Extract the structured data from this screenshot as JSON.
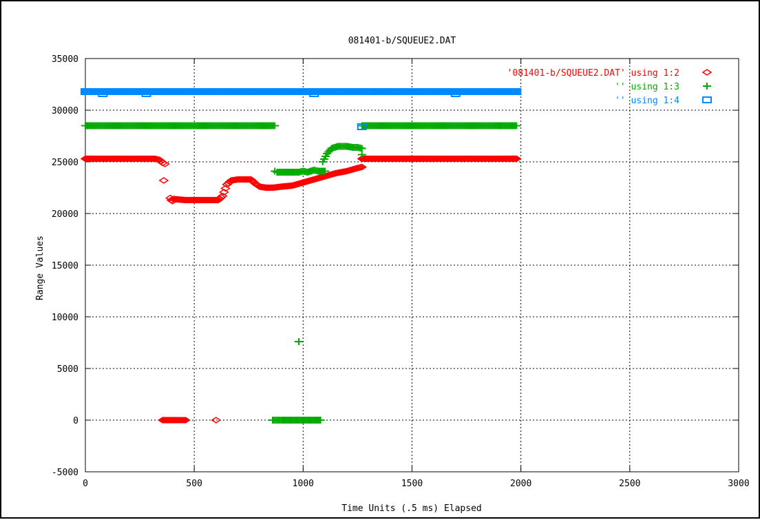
{
  "chart_data": {
    "type": "scatter",
    "title": "081401-b/SQUEUE2.DAT",
    "xlabel": "Time Units (.5 ms) Elapsed",
    "ylabel": "Range Values",
    "xlim": [
      0,
      3000
    ],
    "ylim": [
      -5000,
      35000
    ],
    "xticks": [
      0,
      500,
      1000,
      1500,
      2000,
      2500,
      3000
    ],
    "yticks": [
      -5000,
      0,
      5000,
      10000,
      15000,
      20000,
      25000,
      30000,
      35000
    ],
    "xtick_labels": [
      "0",
      "500",
      "1000",
      "1500",
      "2000",
      "2500",
      "3000"
    ],
    "ytick_labels": [
      "-5000",
      "0",
      "5000",
      "10000",
      "15000",
      "20000",
      "25000",
      "30000",
      "35000"
    ],
    "grid": true,
    "legend_position": "top-right",
    "series": [
      {
        "name": "'081401-b/SQUEUE2.DAT' using 1:2",
        "color": "#ff0000",
        "marker": "diamond",
        "points": [
          [
            0,
            25300
          ],
          [
            40,
            25300
          ],
          [
            80,
            25300
          ],
          [
            120,
            25300
          ],
          [
            160,
            25300
          ],
          [
            200,
            25300
          ],
          [
            240,
            25300
          ],
          [
            280,
            25300
          ],
          [
            320,
            25300
          ],
          [
            340,
            25200
          ],
          [
            355,
            24900
          ],
          [
            365,
            24800
          ],
          [
            355,
            0
          ],
          [
            380,
            0
          ],
          [
            400,
            0
          ],
          [
            420,
            0
          ],
          [
            440,
            0
          ],
          [
            460,
            0
          ],
          [
            360,
            23200
          ],
          [
            390,
            21500
          ],
          [
            395,
            21300
          ],
          [
            400,
            21200
          ],
          [
            405,
            21400
          ],
          [
            460,
            21300
          ],
          [
            490,
            21300
          ],
          [
            520,
            21300
          ],
          [
            550,
            21300
          ],
          [
            580,
            21300
          ],
          [
            610,
            21300
          ],
          [
            630,
            21700
          ],
          [
            650,
            22800
          ],
          [
            670,
            23200
          ],
          [
            700,
            23300
          ],
          [
            730,
            23300
          ],
          [
            760,
            23300
          ],
          [
            780,
            22900
          ],
          [
            800,
            22600
          ],
          [
            830,
            22500
          ],
          [
            860,
            22500
          ],
          [
            900,
            22600
          ],
          [
            950,
            22700
          ],
          [
            1000,
            23000
          ],
          [
            1050,
            23300
          ],
          [
            1100,
            23600
          ],
          [
            1150,
            23900
          ],
          [
            1200,
            24100
          ],
          [
            1250,
            24400
          ],
          [
            1270,
            24500
          ],
          [
            600,
            0
          ],
          [
            1270,
            25300
          ],
          [
            1300,
            25300
          ],
          [
            1400,
            25300
          ],
          [
            1500,
            25300
          ],
          [
            1600,
            25300
          ],
          [
            1700,
            25300
          ],
          [
            1800,
            25300
          ],
          [
            1900,
            25300
          ],
          [
            1980,
            25300
          ]
        ]
      },
      {
        "name": "'' using 1:3",
        "color": "#00aa00",
        "marker": "plus",
        "points": [
          [
            0,
            28500
          ],
          [
            50,
            28500
          ],
          [
            100,
            28500
          ],
          [
            150,
            28500
          ],
          [
            200,
            28500
          ],
          [
            250,
            28500
          ],
          [
            300,
            28500
          ],
          [
            350,
            28500
          ],
          [
            400,
            28500
          ],
          [
            450,
            28500
          ],
          [
            500,
            28500
          ],
          [
            550,
            28500
          ],
          [
            600,
            28500
          ],
          [
            650,
            28500
          ],
          [
            700,
            28500
          ],
          [
            750,
            28500
          ],
          [
            800,
            28500
          ],
          [
            850,
            28500
          ],
          [
            870,
            28500
          ],
          [
            870,
            24100
          ],
          [
            880,
            24000
          ],
          [
            950,
            24000
          ],
          [
            980,
            24000
          ],
          [
            1000,
            24100
          ],
          [
            1020,
            24000
          ],
          [
            1050,
            24200
          ],
          [
            1070,
            24100
          ],
          [
            1100,
            24100
          ],
          [
            1090,
            25000
          ],
          [
            1110,
            25800
          ],
          [
            1130,
            26300
          ],
          [
            1160,
            26500
          ],
          [
            1200,
            26500
          ],
          [
            1230,
            26400
          ],
          [
            1250,
            26400
          ],
          [
            1270,
            26300
          ],
          [
            1270,
            25700
          ],
          [
            980,
            7600
          ],
          [
            860,
            0
          ],
          [
            900,
            0
          ],
          [
            930,
            0
          ],
          [
            960,
            0
          ],
          [
            990,
            0
          ],
          [
            1020,
            0
          ],
          [
            1050,
            0
          ],
          [
            1080,
            0
          ],
          [
            1270,
            28500
          ],
          [
            1300,
            28500
          ],
          [
            1400,
            28500
          ],
          [
            1500,
            28500
          ],
          [
            1600,
            28500
          ],
          [
            1700,
            28500
          ],
          [
            1800,
            28500
          ],
          [
            1900,
            28500
          ],
          [
            1980,
            28500
          ]
        ]
      },
      {
        "name": "'' using 1:4",
        "color": "#0088ff",
        "marker": "square",
        "points": [
          [
            0,
            31800
          ],
          [
            100,
            31800
          ],
          [
            200,
            31800
          ],
          [
            300,
            31800
          ],
          [
            400,
            31800
          ],
          [
            500,
            31800
          ],
          [
            600,
            31800
          ],
          [
            700,
            31800
          ],
          [
            800,
            31800
          ],
          [
            900,
            31800
          ],
          [
            1000,
            31800
          ],
          [
            1100,
            31800
          ],
          [
            1200,
            31800
          ],
          [
            1300,
            31800
          ],
          [
            1400,
            31800
          ],
          [
            1500,
            31800
          ],
          [
            1600,
            31800
          ],
          [
            1700,
            31800
          ],
          [
            1800,
            31800
          ],
          [
            1900,
            31800
          ],
          [
            1980,
            31800
          ],
          [
            80,
            31600
          ],
          [
            280,
            31600
          ],
          [
            1050,
            31600
          ],
          [
            1700,
            31600
          ],
          [
            1270,
            28400
          ]
        ]
      }
    ]
  }
}
